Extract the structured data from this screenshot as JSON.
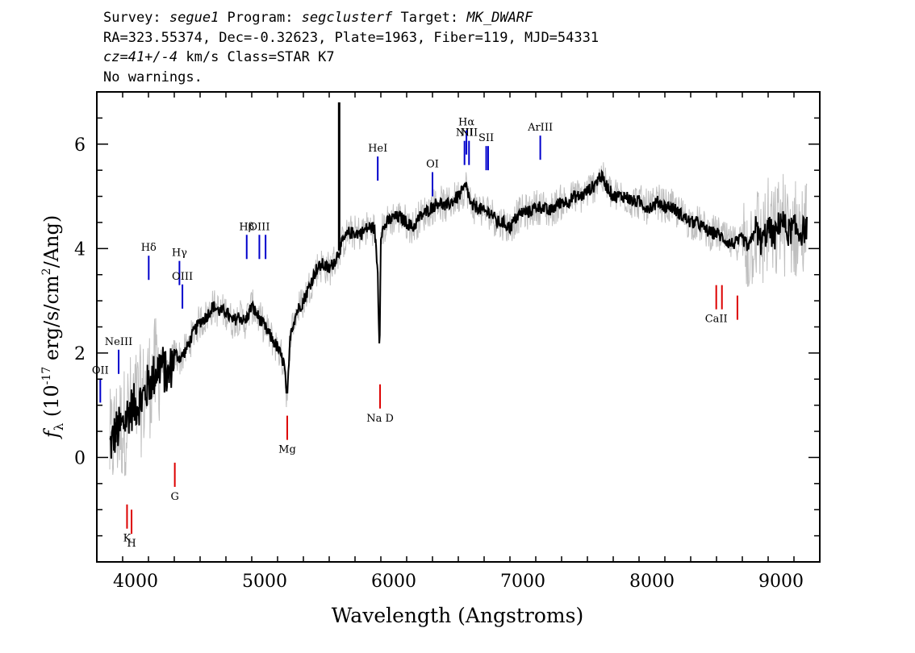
{
  "header": {
    "line1": {
      "survey_label": "Survey: ",
      "survey": "segue1",
      "program_label": " Program: ",
      "program": "segclusterf",
      "target_label": " Target: ",
      "target": "MK_DWARF"
    },
    "line2": "RA=323.55374, Dec=-0.32623, Plate=1963, Fiber=119, MJD=54331",
    "line3": {
      "cz": "cz=41+/-4",
      "rest": " km/s Class=STAR K7"
    },
    "line4": "No warnings."
  },
  "chart_data": {
    "type": "line",
    "xlabel": "Wavelength (Angstroms)",
    "ylabel_prefix": "f",
    "ylabel_sub": "λ",
    "ylabel_rest1": " (10",
    "ylabel_exp": "-17",
    "ylabel_rest2": " erg/s/cm",
    "ylabel_exp2": "2",
    "ylabel_rest3": "/Ang)",
    "xlim": [
      3700,
      9300
    ],
    "ylim": [
      -2.0,
      7.0
    ],
    "xticks": [
      4000,
      5000,
      6000,
      7000,
      8000,
      9000
    ],
    "yticks": [
      0,
      2,
      4,
      6
    ],
    "series": [
      {
        "values_role": "flux",
        "x": [
          3800,
          3850,
          3900,
          3950,
          4000,
          4050,
          4100,
          4150,
          4200,
          4250,
          4300,
          4350,
          4400,
          4450,
          4500,
          4550,
          4600,
          4650,
          4700,
          4750,
          4800,
          4850,
          4900,
          4950,
          5000,
          5050,
          5100,
          5150,
          5175,
          5200,
          5250,
          5300,
          5350,
          5400,
          5450,
          5500,
          5550,
          5600,
          5650,
          5700,
          5750,
          5800,
          5850,
          5875,
          5890,
          5900,
          5950,
          6000,
          6050,
          6100,
          6150,
          6200,
          6250,
          6300,
          6350,
          6400,
          6450,
          6500,
          6563,
          6600,
          6650,
          6700,
          6750,
          6800,
          6850,
          6900,
          6950,
          7000,
          7050,
          7100,
          7150,
          7200,
          7250,
          7300,
          7350,
          7400,
          7450,
          7500,
          7550,
          7600,
          7650,
          7700,
          7750,
          7800,
          7850,
          7900,
          7950,
          8000,
          8050,
          8100,
          8150,
          8200,
          8250,
          8300,
          8350,
          8400,
          8450,
          8500,
          8550,
          8600,
          8650,
          8700,
          8750,
          8800,
          8850,
          8900,
          8950,
          9000,
          9050,
          9100,
          9150,
          9200
        ],
        "y": [
          0.2,
          0.5,
          0.6,
          0.9,
          1.0,
          1.1,
          1.4,
          1.6,
          1.8,
          1.5,
          2.0,
          1.9,
          2.1,
          2.4,
          2.6,
          2.7,
          2.9,
          2.8,
          2.8,
          2.6,
          2.7,
          2.6,
          2.9,
          2.7,
          2.5,
          2.3,
          2.1,
          1.8,
          1.1,
          2.4,
          2.8,
          3.0,
          3.3,
          3.6,
          3.7,
          3.6,
          3.8,
          4.1,
          4.3,
          4.3,
          4.3,
          4.4,
          4.4,
          3.6,
          2.0,
          4.3,
          4.5,
          4.6,
          4.6,
          4.5,
          4.4,
          4.6,
          4.7,
          4.8,
          4.9,
          4.8,
          4.9,
          5.0,
          5.2,
          4.8,
          4.8,
          4.7,
          4.7,
          4.5,
          4.5,
          4.4,
          4.6,
          4.7,
          4.7,
          4.8,
          4.8,
          4.7,
          4.8,
          4.9,
          4.9,
          5.0,
          5.0,
          5.1,
          5.2,
          5.4,
          5.2,
          5.0,
          5.0,
          5.0,
          4.9,
          4.9,
          4.8,
          4.8,
          4.9,
          4.8,
          4.8,
          4.7,
          4.6,
          4.5,
          4.5,
          4.4,
          4.3,
          4.3,
          4.2,
          4.1,
          4.1,
          4.2,
          4.0,
          4.4,
          4.1,
          4.4,
          4.2,
          4.6,
          4.3,
          4.4,
          4.3,
          4.4
        ]
      }
    ],
    "spike": {
      "x": 5577,
      "y": 6.8
    },
    "emission_lines": [
      {
        "label": "OII",
        "x": 3727,
        "y": 1.05
      },
      {
        "label": "NeIII",
        "x": 3869,
        "y": 1.6
      },
      {
        "label": "Hδ",
        "x": 4102,
        "y": 3.4
      },
      {
        "label": "Hγ",
        "x": 4340,
        "y": 3.3
      },
      {
        "label": "OIII",
        "x": 4363,
        "y": 2.85
      },
      {
        "label": "Hβ",
        "x": 4861,
        "y": 3.8
      },
      {
        "label": "OIII",
        "x": 4959,
        "y": 3.8
      },
      {
        "label": "",
        "x": 5007,
        "y": 3.8
      },
      {
        "label": "HeI",
        "x": 5876,
        "y": 5.3
      },
      {
        "label": "OI",
        "x": 6300,
        "y": 5.0
      },
      {
        "label": "NII",
        "x": 6548,
        "y": 5.6
      },
      {
        "label": "Hα",
        "x": 6563,
        "y": 5.8
      },
      {
        "label": "NII",
        "x": 6583,
        "y": 5.6
      },
      {
        "label": "SII",
        "x": 6716,
        "y": 5.5
      },
      {
        "label": "",
        "x": 6731,
        "y": 5.5
      },
      {
        "label": "ArIII",
        "x": 7135,
        "y": 5.7
      }
    ],
    "absorption_lines": [
      {
        "label": "K",
        "x": 3934,
        "y": -0.9
      },
      {
        "label": "H",
        "x": 3969,
        "y": -1.0
      },
      {
        "label": "G",
        "x": 4304,
        "y": -0.1
      },
      {
        "label": "Mg",
        "x": 5175,
        "y": 0.8
      },
      {
        "label": "Na D",
        "x": 5894,
        "y": 1.4
      },
      {
        "label": "CaII",
        "x": 8498,
        "y": 3.3
      },
      {
        "label": "",
        "x": 8542,
        "y": 3.3
      },
      {
        "label": "",
        "x": 8662,
        "y": 3.1
      }
    ],
    "colors": {
      "flux": "#000000",
      "error": "#bfbfbf",
      "emission": "#0000cc",
      "absorption": "#dd0000"
    }
  }
}
